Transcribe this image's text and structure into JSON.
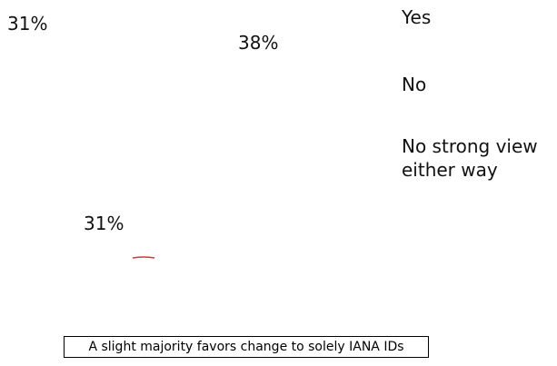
{
  "chart_data": {
    "type": "pie",
    "categories": [
      "Yes",
      "No",
      "No strong view\neither way"
    ],
    "values": [
      38,
      31,
      31
    ],
    "data_labels": [
      "38%",
      "31%",
      "31%"
    ],
    "legend_position": "right",
    "colors": {
      "accent": "#e0303a",
      "text": "#111111",
      "border": "#000000"
    }
  },
  "caption": "A slight majority favors change to solely IANA IDs"
}
